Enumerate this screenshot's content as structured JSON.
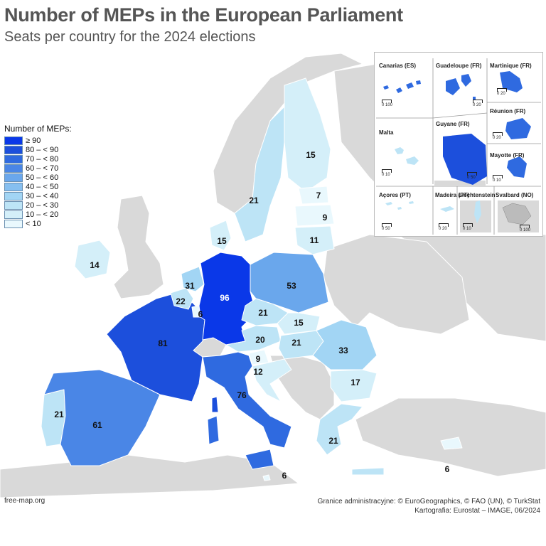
{
  "title": "Number of MEPs in the European Parliament",
  "subtitle": "Seats per country for the 2024 elections",
  "legend": {
    "title": "Number of MEPs:",
    "classes": [
      {
        "label": "≥ 90",
        "color": "#0a38e8"
      },
      {
        "label": "80 – < 90",
        "color": "#1c4fdc"
      },
      {
        "label": "70 – < 80",
        "color": "#2f6ae0"
      },
      {
        "label": "60 – < 70",
        "color": "#4a86e6"
      },
      {
        "label": "50 – < 60",
        "color": "#6aa7ec"
      },
      {
        "label": "40 – < 50",
        "color": "#86bff0"
      },
      {
        "label": "30 – < 40",
        "color": "#a2d5f4"
      },
      {
        "label": "20 – < 30",
        "color": "#bde4f6"
      },
      {
        "label": "10 – < 20",
        "color": "#d4eff9"
      },
      {
        "label": "< 10",
        "color": "#e9f8fd"
      }
    ]
  },
  "countries": {
    "germany": "96",
    "france": "81",
    "italy": "76",
    "spain": "61",
    "poland": "53",
    "romania": "33",
    "netherlands": "31",
    "belgium": "22",
    "greece": "21",
    "czechia": "21",
    "sweden": "21",
    "portugal": "21",
    "hungary": "21",
    "austria": "20",
    "bulgaria": "17",
    "denmark": "15",
    "finland": "15",
    "slovakia": "15",
    "ireland": "14",
    "croatia": "12",
    "lithuania": "11",
    "latvia": "9",
    "slovenia": "9",
    "estonia": "7",
    "luxembourg": "6",
    "cyprus": "6",
    "malta": "6"
  },
  "insets": {
    "canarias": {
      "label": "Canarias (ES)",
      "scale": "0  100"
    },
    "guadeloupe": {
      "label": "Guadeloupe (FR)",
      "scale": "0  20"
    },
    "martinique": {
      "label": "Martinique (FR)",
      "scale": "0  20"
    },
    "malta": {
      "label": "Malta",
      "scale": "0  10"
    },
    "guyane": {
      "label": "Guyane (FR)",
      "scale": "0  50"
    },
    "reunion": {
      "label": "Réunion (FR)",
      "scale": "0  20"
    },
    "mayotte": {
      "label": "Mayotte (FR)",
      "scale": "0  10"
    },
    "acores": {
      "label": "Açores (PT)",
      "scale": "0  50"
    },
    "madeira": {
      "label": "Madeira (PT)",
      "scale": "0  20"
    },
    "liechtenstein": {
      "label": "Liechtenstein",
      "scale": "0  10"
    },
    "svalbard": {
      "label": "Svalbard (NO)",
      "scale": "0  100"
    }
  },
  "footer": {
    "source": "free-map.org",
    "credits_line1": "Granice administracyjne: © EuroGeographics, © FAO (UN), © TurkStat",
    "credits_line2": "Kartografia: Eurostat – IMAGE, 06/2024"
  },
  "colors": {
    "non_eu": "#d9d9d9",
    "border": "#ffffff",
    "sea": "#ffffff"
  }
}
